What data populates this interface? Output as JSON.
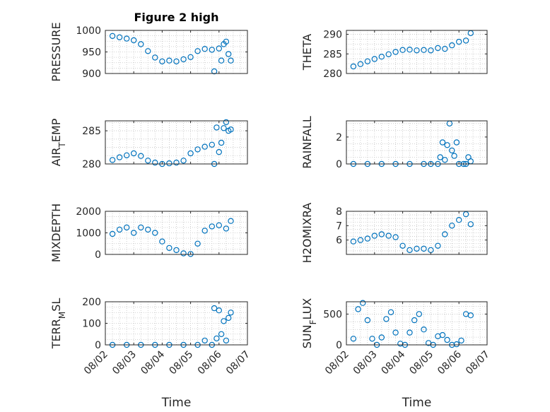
{
  "figure": {
    "title": "Figure 2 high",
    "colors": {
      "marker": "#0072BD",
      "axis": "#262626",
      "grid": "#c4c4c4"
    },
    "x_ticks": [
      "08/02",
      "08/03",
      "08/04",
      "08/05",
      "08/06",
      "08/07"
    ],
    "x_label": "Time"
  },
  "chart_data": [
    {
      "type": "scatter",
      "panel": "top-left",
      "ylabel": "PRESSURE",
      "title": "Figure 2 high",
      "ylim": [
        900,
        1000
      ],
      "yticks": [
        "1000",
        "950",
        "900"
      ],
      "grid": true,
      "x": [
        "08/02 06:00",
        "08/02 12:00",
        "08/02 18:00",
        "08/03 00:00",
        "08/03 06:00",
        "08/03 12:00",
        "08/03 18:00",
        "08/04 00:00",
        "08/04 06:00",
        "08/04 12:00",
        "08/04 18:00",
        "08/05 00:00",
        "08/05 06:00",
        "08/05 12:00",
        "08/05 18:00",
        "08/05 20:00",
        "08/06 00:00",
        "08/06 02:00",
        "08/06 04:00",
        "08/06 06:00",
        "08/06 08:00",
        "08/06 10:00"
      ],
      "y": [
        987,
        984,
        981,
        977,
        968,
        952,
        937,
        928,
        930,
        928,
        933,
        938,
        952,
        957,
        955,
        905,
        958,
        930,
        968,
        974,
        945,
        930
      ]
    },
    {
      "type": "scatter",
      "panel": "top-right",
      "ylabel": "THETA",
      "ylim": [
        280,
        291
      ],
      "yticks": [
        "290",
        "285",
        "280"
      ],
      "grid": true,
      "x": [
        "08/02 06:00",
        "08/02 12:00",
        "08/02 18:00",
        "08/03 00:00",
        "08/03 06:00",
        "08/03 12:00",
        "08/03 18:00",
        "08/04 00:00",
        "08/04 06:00",
        "08/04 12:00",
        "08/04 18:00",
        "08/05 00:00",
        "08/05 06:00",
        "08/05 12:00",
        "08/05 18:00",
        "08/06 00:00",
        "08/06 06:00",
        "08/06 10:00"
      ],
      "y": [
        281.8,
        282.4,
        283.1,
        283.7,
        284.3,
        284.9,
        285.5,
        286.0,
        286.1,
        285.9,
        286.0,
        285.9,
        286.5,
        286.3,
        287.2,
        288.1,
        288.4,
        290.3
      ]
    },
    {
      "type": "scatter",
      "panel": "second-left",
      "ylabel": "AIR_TEMP",
      "ylim": [
        280,
        286.5
      ],
      "yticks": [
        "285",
        "280"
      ],
      "grid": true,
      "x": [
        "08/02 06:00",
        "08/02 12:00",
        "08/02 18:00",
        "08/03 00:00",
        "08/03 06:00",
        "08/03 12:00",
        "08/03 18:00",
        "08/04 00:00",
        "08/04 06:00",
        "08/04 12:00",
        "08/04 18:00",
        "08/05 00:00",
        "08/05 06:00",
        "08/05 12:00",
        "08/05 18:00",
        "08/05 20:00",
        "08/05 22:00",
        "08/06 00:00",
        "08/06 02:00",
        "08/06 04:00",
        "08/06 06:00",
        "08/06 08:00",
        "08/06 10:00"
      ],
      "y": [
        280.6,
        281.0,
        281.3,
        281.6,
        281.2,
        280.5,
        280.2,
        280.0,
        280.1,
        280.2,
        280.5,
        281.6,
        282.2,
        282.6,
        282.9,
        280.0,
        285.5,
        281.8,
        283.2,
        285.4,
        286.3,
        285.0,
        285.2
      ]
    },
    {
      "type": "scatter",
      "panel": "second-right",
      "ylabel": "RAINFALL",
      "ylim": [
        0,
        3.2
      ],
      "yticks": [
        "2",
        "0"
      ],
      "grid": true,
      "x": [
        "08/02 06:00",
        "08/02 18:00",
        "08/03 06:00",
        "08/03 18:00",
        "08/04 06:00",
        "08/04 18:00",
        "08/05 00:00",
        "08/05 06:00",
        "08/05 08:00",
        "08/05 10:00",
        "08/05 12:00",
        "08/05 14:00",
        "08/05 16:00",
        "08/05 18:00",
        "08/05 20:00",
        "08/05 22:00",
        "08/06 00:00",
        "08/06 04:00",
        "08/06 06:00",
        "08/06 08:00",
        "08/06 10:00"
      ],
      "y": [
        0,
        0,
        0,
        0,
        0,
        0,
        0,
        0,
        0.5,
        1.6,
        0.3,
        1.4,
        3.0,
        1.0,
        0.6,
        1.6,
        0,
        0,
        0,
        0.5,
        0.2
      ]
    },
    {
      "type": "scatter",
      "panel": "third-left",
      "ylabel": "MIXDEPTH",
      "ylim": [
        0,
        2000
      ],
      "yticks": [
        "2000",
        "1000",
        "0"
      ],
      "grid": true,
      "x": [
        "08/02 06:00",
        "08/02 12:00",
        "08/02 18:00",
        "08/03 00:00",
        "08/03 06:00",
        "08/03 12:00",
        "08/03 18:00",
        "08/04 00:00",
        "08/04 06:00",
        "08/04 12:00",
        "08/04 18:00",
        "08/05 00:00",
        "08/05 06:00",
        "08/05 12:00",
        "08/05 18:00",
        "08/06 00:00",
        "08/06 06:00",
        "08/06 10:00"
      ],
      "y": [
        950,
        1150,
        1250,
        1000,
        1250,
        1150,
        1000,
        600,
        300,
        200,
        50,
        20,
        500,
        1100,
        1300,
        1350,
        1200,
        1550
      ]
    },
    {
      "type": "scatter",
      "panel": "third-right",
      "ylabel": "H2OMIXRA",
      "ylim": [
        5,
        8
      ],
      "yticks": [
        "8",
        "7",
        "6"
      ],
      "grid": true,
      "x": [
        "08/02 06:00",
        "08/02 12:00",
        "08/02 18:00",
        "08/03 00:00",
        "08/03 06:00",
        "08/03 12:00",
        "08/03 18:00",
        "08/04 00:00",
        "08/04 06:00",
        "08/04 12:00",
        "08/04 18:00",
        "08/05 00:00",
        "08/05 06:00",
        "08/05 12:00",
        "08/05 18:00",
        "08/06 00:00",
        "08/06 06:00",
        "08/06 10:00"
      ],
      "y": [
        5.9,
        6.0,
        6.1,
        6.3,
        6.4,
        6.3,
        6.2,
        5.6,
        5.3,
        5.4,
        5.4,
        5.3,
        5.6,
        6.4,
        7.0,
        7.4,
        7.8,
        7.1
      ]
    },
    {
      "type": "scatter",
      "panel": "bottom-left",
      "ylabel": "TERR_MSL",
      "ylim": [
        0,
        200
      ],
      "yticks": [
        "200",
        "100",
        "0"
      ],
      "grid": true,
      "x": [
        "08/02 06:00",
        "08/02 18:00",
        "08/03 06:00",
        "08/03 18:00",
        "08/04 06:00",
        "08/04 18:00",
        "08/05 06:00",
        "08/05 12:00",
        "08/05 18:00",
        "08/05 20:00",
        "08/05 22:00",
        "08/06 00:00",
        "08/06 02:00",
        "08/06 04:00",
        "08/06 06:00",
        "08/06 08:00",
        "08/06 10:00"
      ],
      "y": [
        0,
        0,
        0,
        0,
        0,
        0,
        0,
        20,
        0,
        170,
        30,
        160,
        50,
        110,
        20,
        125,
        150
      ]
    },
    {
      "type": "scatter",
      "panel": "bottom-right",
      "ylabel": "SUN_FLUX",
      "ylim": [
        0,
        700
      ],
      "yticks": [
        "500",
        "0"
      ],
      "grid": true,
      "x": [
        "08/02 06:00",
        "08/02 10:00",
        "08/02 14:00",
        "08/02 18:00",
        "08/02 22:00",
        "08/03 02:00",
        "08/03 06:00",
        "08/03 10:00",
        "08/03 14:00",
        "08/03 18:00",
        "08/03 22:00",
        "08/04 02:00",
        "08/04 06:00",
        "08/04 10:00",
        "08/04 14:00",
        "08/04 18:00",
        "08/04 22:00",
        "08/05 02:00",
        "08/05 06:00",
        "08/05 10:00",
        "08/05 14:00",
        "08/05 18:00",
        "08/05 22:00",
        "08/06 02:00",
        "08/06 06:00",
        "08/06 10:00"
      ],
      "y": [
        100,
        580,
        680,
        400,
        100,
        0,
        120,
        420,
        530,
        200,
        20,
        0,
        200,
        400,
        500,
        250,
        30,
        0,
        140,
        160,
        80,
        0,
        10,
        70,
        500,
        480
      ]
    }
  ]
}
